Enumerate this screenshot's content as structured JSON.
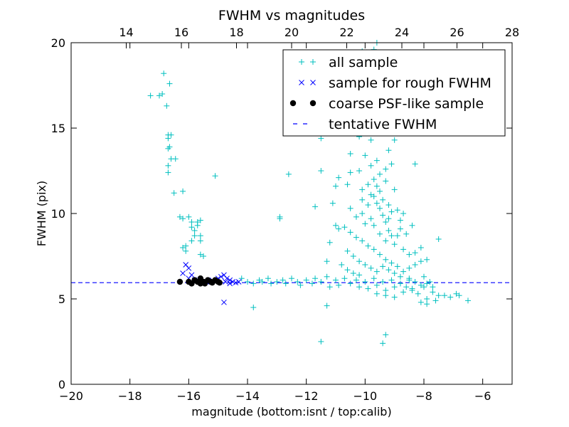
{
  "chart_data": {
    "type": "scatter",
    "title": "FWHM vs magnitudes",
    "xlabel": "magnitude (bottom:isnt / top:calib)",
    "ylabel": "FWHM (pix)",
    "xlim": [
      -20,
      -5
    ],
    "ylim": [
      0,
      20
    ],
    "top_xlim": [
      12,
      28
    ],
    "x_ticks": [
      "−20",
      "−18",
      "−16",
      "−14",
      "−12",
      "−10",
      "−8",
      "−6"
    ],
    "x_tick_values": [
      -20,
      -18,
      -16,
      -14,
      -12,
      -10,
      -8,
      -6
    ],
    "top_ticks": [
      "14",
      "16",
      "18",
      "20",
      "22",
      "24",
      "26",
      "28"
    ],
    "top_tick_values": [
      14,
      16,
      18,
      20,
      22,
      24,
      26,
      28
    ],
    "y_ticks": [
      "0",
      "5",
      "10",
      "15",
      "20"
    ],
    "y_tick_values": [
      0,
      5,
      10,
      15,
      20
    ],
    "legend_position": "top-right",
    "colors": {
      "all": "#00bfbf",
      "rough": "#0000ff",
      "psf": "#000000",
      "tentative": "#0000ff"
    },
    "legend": [
      {
        "label": "all sample",
        "marker": "plus"
      },
      {
        "label": "sample for rough FWHM",
        "marker": "cross"
      },
      {
        "label": "coarse PSF-like sample",
        "marker": "dot"
      },
      {
        "label": "tentative FWHM",
        "marker": "dash"
      }
    ],
    "tentative_fwhm": 5.95,
    "series": [
      {
        "name": "all sample",
        "points": [
          [
            -17.3,
            16.9
          ],
          [
            -17.0,
            16.9
          ],
          [
            -16.9,
            17.0
          ],
          [
            -16.85,
            18.2
          ],
          [
            -16.65,
            17.6
          ],
          [
            -16.75,
            16.3
          ],
          [
            -16.7,
            14.6
          ],
          [
            -16.6,
            14.6
          ],
          [
            -16.7,
            14.4
          ],
          [
            -16.65,
            13.9
          ],
          [
            -16.7,
            13.8
          ],
          [
            -16.6,
            13.2
          ],
          [
            -16.45,
            13.2
          ],
          [
            -16.7,
            12.8
          ],
          [
            -16.7,
            12.4
          ],
          [
            -16.5,
            11.2
          ],
          [
            -16.2,
            11.3
          ],
          [
            -15.1,
            12.2
          ],
          [
            -16.3,
            9.8
          ],
          [
            -16.2,
            9.7
          ],
          [
            -16.0,
            9.8
          ],
          [
            -15.9,
            9.5
          ],
          [
            -15.9,
            9.2
          ],
          [
            -15.8,
            9.0
          ],
          [
            -15.8,
            8.7
          ],
          [
            -15.9,
            8.4
          ],
          [
            -15.6,
            8.7
          ],
          [
            -15.6,
            8.4
          ],
          [
            -16.1,
            8.1
          ],
          [
            -16.2,
            8.0
          ],
          [
            -16.1,
            7.8
          ],
          [
            -15.5,
            7.5
          ],
          [
            -15.6,
            7.6
          ],
          [
            -15.6,
            9.6
          ],
          [
            -15.7,
            9.5
          ],
          [
            -15.7,
            9.3
          ],
          [
            -14.2,
            6.2
          ],
          [
            -14.0,
            6.0
          ],
          [
            -13.8,
            5.9
          ],
          [
            -13.6,
            6.1
          ],
          [
            -13.5,
            6.0
          ],
          [
            -13.3,
            6.2
          ],
          [
            -13.2,
            5.9
          ],
          [
            -13.0,
            6.0
          ],
          [
            -12.8,
            6.1
          ],
          [
            -12.7,
            5.9
          ],
          [
            -12.5,
            6.2
          ],
          [
            -12.3,
            6.0
          ],
          [
            -12.2,
            5.8
          ],
          [
            -12.0,
            6.1
          ],
          [
            -11.8,
            5.9
          ],
          [
            -11.7,
            6.2
          ],
          [
            -11.5,
            6.0
          ],
          [
            -11.3,
            6.3
          ],
          [
            -11.2,
            5.7
          ],
          [
            -11.0,
            6.1
          ],
          [
            -10.9,
            5.8
          ],
          [
            -10.7,
            6.2
          ],
          [
            -10.5,
            5.9
          ],
          [
            -10.3,
            6.1
          ],
          [
            -10.2,
            5.7
          ],
          [
            -10.0,
            6.0
          ],
          [
            -9.9,
            5.6
          ],
          [
            -9.7,
            6.2
          ],
          [
            -9.6,
            5.8
          ],
          [
            -9.4,
            6.0
          ],
          [
            -9.3,
            5.5
          ],
          [
            -9.1,
            6.1
          ],
          [
            -9.0,
            5.7
          ],
          [
            -8.8,
            5.9
          ],
          [
            -8.7,
            5.4
          ],
          [
            -8.5,
            6.1
          ],
          [
            -8.4,
            5.6
          ],
          [
            -8.2,
            5.3
          ],
          [
            -8.0,
            5.7
          ],
          [
            -7.9,
            5.0
          ],
          [
            -7.7,
            5.4
          ],
          [
            -7.5,
            5.2
          ],
          [
            -7.3,
            5.2
          ],
          [
            -6.9,
            5.3
          ],
          [
            -6.8,
            5.2
          ],
          [
            -7.1,
            5.1
          ],
          [
            -7.9,
            4.7
          ],
          [
            -8.1,
            4.8
          ],
          [
            -7.6,
            4.9
          ],
          [
            -6.5,
            4.9
          ],
          [
            -13.8,
            4.5
          ],
          [
            -11.3,
            4.6
          ],
          [
            -11.5,
            2.5
          ],
          [
            -9.3,
            2.9
          ],
          [
            -9.4,
            2.4
          ],
          [
            -12.9,
            9.7
          ],
          [
            -12.9,
            9.8
          ],
          [
            -12.6,
            12.3
          ],
          [
            -11.7,
            10.4
          ],
          [
            -11.2,
            8.3
          ],
          [
            -11.0,
            9.3
          ],
          [
            -11.3,
            7.2
          ],
          [
            -11.5,
            12.5
          ],
          [
            -11.5,
            14.4
          ],
          [
            -10.9,
            12.1
          ],
          [
            -11.0,
            11.6
          ],
          [
            -11.1,
            10.6
          ],
          [
            -10.5,
            13.5
          ],
          [
            -10.5,
            12.4
          ],
          [
            -10.6,
            11.7
          ],
          [
            -10.2,
            12.5
          ],
          [
            -10.0,
            13.4
          ],
          [
            -9.8,
            12.8
          ],
          [
            -9.6,
            13.1
          ],
          [
            -10.3,
            14.9
          ],
          [
            -10.2,
            14.5
          ],
          [
            -9.8,
            14.3
          ],
          [
            -9.8,
            15.1
          ],
          [
            -9.7,
            15.4
          ],
          [
            -9.6,
            14.8
          ],
          [
            -9.4,
            15.6
          ],
          [
            -9.0,
            14.3
          ],
          [
            -9.2,
            13.7
          ],
          [
            -9.1,
            12.9
          ],
          [
            -10.1,
            11.4
          ],
          [
            -10.1,
            10.8
          ],
          [
            -9.9,
            10.5
          ],
          [
            -9.9,
            11.7
          ],
          [
            -9.8,
            11.1
          ],
          [
            -9.7,
            11.0
          ],
          [
            -9.6,
            10.6
          ],
          [
            -9.5,
            10.3
          ],
          [
            -9.4,
            9.9
          ],
          [
            -9.3,
            9.5
          ],
          [
            -9.2,
            9.0
          ],
          [
            -9.1,
            8.7
          ],
          [
            -9.0,
            8.2
          ],
          [
            -8.9,
            8.7
          ],
          [
            -8.8,
            9.1
          ],
          [
            -8.6,
            8.8
          ],
          [
            -8.7,
            7.9
          ],
          [
            -8.5,
            7.6
          ],
          [
            -8.3,
            7.7
          ],
          [
            -8.1,
            8.0
          ],
          [
            -7.5,
            8.5
          ],
          [
            -7.9,
            7.3
          ],
          [
            -8.1,
            7.2
          ],
          [
            -8.3,
            7.0
          ],
          [
            -8.5,
            6.8
          ],
          [
            -8.7,
            6.6
          ],
          [
            -8.9,
            6.9
          ],
          [
            -9.1,
            7.1
          ],
          [
            -9.3,
            7.3
          ],
          [
            -9.5,
            7.6
          ],
          [
            -9.7,
            7.9
          ],
          [
            -9.9,
            8.1
          ],
          [
            -10.1,
            8.4
          ],
          [
            -10.3,
            8.6
          ],
          [
            -10.5,
            8.9
          ],
          [
            -10.7,
            9.2
          ],
          [
            -10.9,
            9.1
          ],
          [
            -10.6,
            7.8
          ],
          [
            -10.4,
            7.5
          ],
          [
            -10.2,
            7.2
          ],
          [
            -10.0,
            7.0
          ],
          [
            -9.8,
            6.8
          ],
          [
            -9.6,
            6.6
          ],
          [
            -9.4,
            6.9
          ],
          [
            -9.2,
            6.7
          ],
          [
            -9.0,
            6.5
          ],
          [
            -8.8,
            6.3
          ],
          [
            -10.8,
            7.0
          ],
          [
            -10.6,
            6.7
          ],
          [
            -10.4,
            6.5
          ],
          [
            -10.2,
            6.4
          ],
          [
            -8.6,
            5.7
          ],
          [
            -8.4,
            5.5
          ],
          [
            -9.3,
            5.2
          ],
          [
            -9.0,
            5.1
          ],
          [
            -9.6,
            5.3
          ],
          [
            -9.2,
            10.5
          ],
          [
            -9.4,
            10.8
          ],
          [
            -9.5,
            11.3
          ],
          [
            -9.6,
            11.6
          ],
          [
            -9.3,
            11.9
          ],
          [
            -9.0,
            11.4
          ],
          [
            -8.9,
            10.2
          ],
          [
            -8.8,
            9.6
          ],
          [
            -8.7,
            10.0
          ],
          [
            -9.2,
            9.7
          ],
          [
            -9.1,
            10.1
          ],
          [
            -9.3,
            8.4
          ],
          [
            -9.5,
            8.8
          ],
          [
            -9.7,
            9.3
          ],
          [
            -9.8,
            9.7
          ],
          [
            -10.0,
            9.4
          ],
          [
            -8.4,
            9.3
          ],
          [
            -8.3,
            12.9
          ],
          [
            -9.3,
            12.6
          ],
          [
            -9.5,
            12.3
          ],
          [
            -9.7,
            12.0
          ],
          [
            -10.4,
            15.9
          ],
          [
            -10.1,
            19.5
          ],
          [
            -9.7,
            19.6
          ],
          [
            -9.6,
            20.0
          ],
          [
            -9.4,
            19.4
          ],
          [
            -9.3,
            18.2
          ],
          [
            -9.5,
            17.7
          ],
          [
            -9.8,
            17.2
          ],
          [
            -10.0,
            16.8
          ],
          [
            -9.5,
            16.3
          ],
          [
            -9.2,
            16.9
          ],
          [
            -9.0,
            17.5
          ],
          [
            -8.7,
            17.9
          ],
          [
            -9.8,
            16.0
          ],
          [
            -10.1,
            15.2
          ],
          [
            -10.1,
            10.0
          ],
          [
            -10.3,
            9.8
          ],
          [
            -10.5,
            10.3
          ],
          [
            -8.5,
            6.2
          ],
          [
            -8.3,
            6.0
          ],
          [
            -8.1,
            5.8
          ],
          [
            -7.9,
            5.9
          ],
          [
            -7.7,
            5.7
          ],
          [
            -7.8,
            6.0
          ],
          [
            -8.0,
            6.3
          ]
        ]
      },
      {
        "name": "sample for rough FWHM",
        "points": [
          [
            -16.1,
            7.0
          ],
          [
            -16.0,
            6.8
          ],
          [
            -16.2,
            6.5
          ],
          [
            -15.9,
            6.4
          ],
          [
            -16.0,
            6.2
          ],
          [
            -15.8,
            6.1
          ],
          [
            -15.6,
            6.1
          ],
          [
            -15.4,
            6.0
          ],
          [
            -15.2,
            6.1
          ],
          [
            -15.0,
            6.2
          ],
          [
            -14.9,
            6.3
          ],
          [
            -14.8,
            6.4
          ],
          [
            -14.7,
            6.2
          ],
          [
            -14.6,
            6.1
          ],
          [
            -14.5,
            6.0
          ],
          [
            -14.4,
            5.95
          ],
          [
            -14.3,
            6.0
          ],
          [
            -14.75,
            6.0
          ],
          [
            -14.6,
            5.9
          ],
          [
            -14.8,
            4.8
          ]
        ]
      },
      {
        "name": "coarse PSF-like sample",
        "points": [
          [
            -16.3,
            6.0
          ],
          [
            -16.0,
            6.0
          ],
          [
            -15.9,
            5.9
          ],
          [
            -15.8,
            6.1
          ],
          [
            -15.7,
            6.0
          ],
          [
            -15.6,
            6.2
          ],
          [
            -15.5,
            6.0
          ],
          [
            -15.45,
            5.9
          ],
          [
            -15.35,
            6.1
          ],
          [
            -15.25,
            6.0
          ],
          [
            -15.1,
            6.1
          ],
          [
            -15.0,
            6.0
          ],
          [
            -14.95,
            5.95
          ],
          [
            -15.2,
            5.95
          ],
          [
            -15.6,
            5.9
          ]
        ]
      }
    ]
  }
}
